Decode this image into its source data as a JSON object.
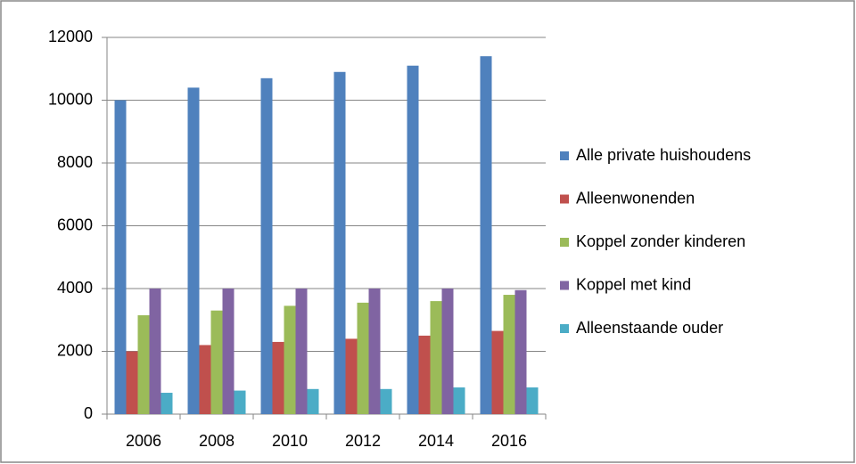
{
  "chart_data": {
    "type": "bar",
    "categories": [
      "2006",
      "2008",
      "2010",
      "2012",
      "2014",
      "2016"
    ],
    "series": [
      {
        "name": "Alle private huishoudens",
        "color": "#4f81bd",
        "values": [
          10000,
          10400,
          10700,
          10900,
          11100,
          11400
        ]
      },
      {
        "name": "Alleenwonenden",
        "color": "#c0504d",
        "values": [
          2000,
          2200,
          2300,
          2400,
          2500,
          2650
        ]
      },
      {
        "name": "Koppel zonder kinderen",
        "color": "#9bbb59",
        "values": [
          3150,
          3300,
          3450,
          3550,
          3600,
          3800
        ]
      },
      {
        "name": "Koppel met kind",
        "color": "#8064a2",
        "values": [
          4000,
          4000,
          4000,
          4000,
          4000,
          3950
        ]
      },
      {
        "name": "Alleenstaande ouder",
        "color": "#4bacc6",
        "values": [
          680,
          750,
          800,
          800,
          850,
          850
        ]
      }
    ],
    "ylim": [
      0,
      12000
    ],
    "yticks": [
      0,
      2000,
      4000,
      6000,
      8000,
      10000,
      12000
    ],
    "grid": true,
    "legend": "right"
  }
}
